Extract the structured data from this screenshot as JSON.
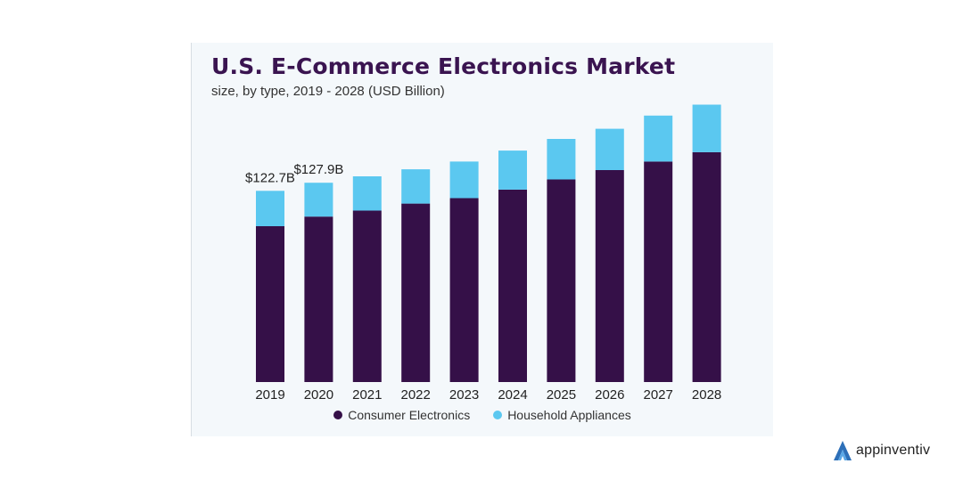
{
  "chart_data": {
    "type": "bar",
    "stacked": true,
    "title": "U.S. E-Commerce Electronics Market",
    "subtitle": "size, by type, 2019 - 2028 (USD Billion)",
    "categories": [
      "2019",
      "2020",
      "2021",
      "2022",
      "2023",
      "2024",
      "2025",
      "2026",
      "2027",
      "2028"
    ],
    "series": [
      {
        "name": "Consumer Electronics",
        "color": "#351048",
        "values": [
          100.0,
          106.2,
          110.0,
          114.5,
          118.0,
          123.5,
          130.0,
          136.0,
          141.5,
          147.5
        ]
      },
      {
        "name": "Household Appliances",
        "color": "#5bc8f0",
        "values": [
          22.7,
          21.7,
          22.0,
          22.0,
          23.5,
          25.0,
          26.0,
          26.5,
          29.5,
          30.5
        ]
      }
    ],
    "data_labels": [
      {
        "category": "2019",
        "text": "$122.7B"
      },
      {
        "category": "2020",
        "text": "$127.9B"
      }
    ],
    "ylim": [
      0,
      180
    ],
    "grid": false,
    "legend_position": "bottom"
  },
  "legend": {
    "items": [
      {
        "label": "Consumer Electronics",
        "color": "#351048"
      },
      {
        "label": "Household Appliances",
        "color": "#5bc8f0"
      }
    ]
  },
  "brand": {
    "name": "appinventiv",
    "icon": "appinventiv-logo-icon"
  }
}
